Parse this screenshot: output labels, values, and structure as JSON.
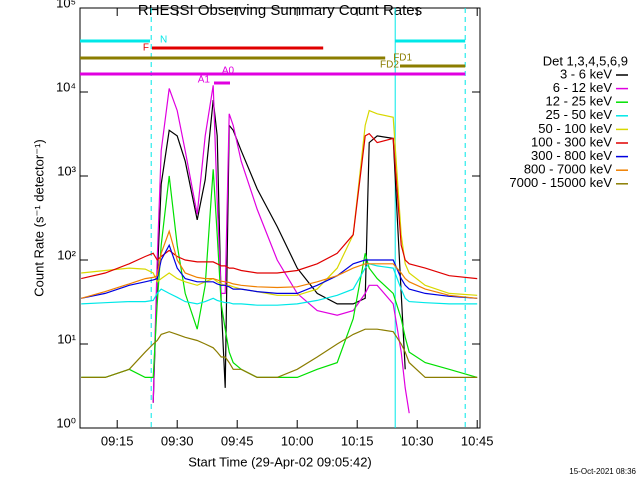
{
  "chart_data": {
    "type": "line",
    "title": "RHESSI Observing Summary Count Rates",
    "xlabel": "Start Time (29-Apr-02 09:05:42)",
    "ylabel": "Count Rate (s⁻¹ detector⁻¹)",
    "footer": "15-Oct-2021 08:36",
    "legend_title": "Det 1,3,4,5,6,9",
    "log_y": true,
    "xlim": [
      5.7,
      105.7
    ],
    "xticks": [
      {
        "value": 15,
        "label": "09:15"
      },
      {
        "value": 30,
        "label": "09:30"
      },
      {
        "value": 45,
        "label": "09:45"
      },
      {
        "value": 60,
        "label": "10:00"
      },
      {
        "value": 75,
        "label": "10:15"
      },
      {
        "value": 90,
        "label": "10:30"
      },
      {
        "value": 105,
        "label": "10:45"
      }
    ],
    "ylim": [
      1,
      100000
    ],
    "yticks": [
      {
        "value": 1,
        "label": "10⁰"
      },
      {
        "value": 10,
        "label": "10¹"
      },
      {
        "value": 100,
        "label": "10²"
      },
      {
        "value": 1000,
        "label": "10³"
      },
      {
        "value": 10000,
        "label": "10⁴"
      },
      {
        "value": 100000,
        "label": "10⁵"
      }
    ],
    "x": [
      6,
      12,
      18,
      22,
      24,
      25,
      26,
      28,
      30,
      32,
      35,
      37,
      39,
      40,
      41,
      42,
      43,
      44,
      46,
      50,
      55,
      60,
      65,
      70,
      74,
      77,
      78,
      80,
      84,
      86,
      87,
      88,
      92,
      98,
      105
    ],
    "series": [
      {
        "name": "3 - 6 keV",
        "color": "#000000",
        "values": [
          null,
          null,
          null,
          null,
          2,
          60,
          800,
          3500,
          3000,
          1500,
          300,
          900,
          8000,
          3000,
          30,
          3,
          4000,
          3500,
          2000,
          700,
          250,
          80,
          40,
          30,
          30,
          35,
          2500,
          3000,
          2800,
          40,
          5,
          null,
          null,
          null,
          null
        ]
      },
      {
        "name": "6 - 12 keV",
        "color": "#e000e0",
        "values": [
          null,
          null,
          null,
          null,
          2,
          100,
          2000,
          11000,
          6000,
          2000,
          350,
          3000,
          12000,
          500,
          40,
          40,
          5500,
          4000,
          1500,
          400,
          100,
          40,
          25,
          22,
          25,
          40,
          50,
          50,
          30,
          8,
          3,
          1.5,
          null,
          null,
          null
        ]
      },
      {
        "name": "12 - 25 keV",
        "color": "#00e000",
        "values": [
          4,
          4,
          5,
          4,
          4,
          30,
          150,
          1000,
          150,
          40,
          15,
          50,
          1200,
          200,
          30,
          15,
          8,
          6,
          5,
          4,
          4,
          4,
          5,
          6,
          20,
          120,
          80,
          60,
          40,
          20,
          12,
          8,
          6,
          5,
          4
        ]
      },
      {
        "name": "25 - 50 keV",
        "color": "#00e8e8",
        "values": [
          30,
          31,
          32,
          32,
          33,
          40,
          45,
          40,
          36,
          32,
          30,
          32,
          35,
          33,
          32,
          31,
          31,
          30,
          30,
          29,
          29,
          30,
          33,
          38,
          45,
          80,
          90,
          85,
          80,
          45,
          35,
          32,
          31,
          30,
          30
        ]
      },
      {
        "name": "50 - 100 keV",
        "color": "#d8d800",
        "values": [
          70,
          75,
          80,
          78,
          70,
          55,
          60,
          70,
          60,
          55,
          50,
          55,
          60,
          55,
          52,
          50,
          50,
          48,
          45,
          42,
          38,
          38,
          45,
          80,
          200,
          4000,
          6000,
          5500,
          5000,
          200,
          90,
          70,
          50,
          40,
          38
        ]
      },
      {
        "name": "100 - 300 keV",
        "color": "#e00000",
        "values": [
          60,
          70,
          90,
          110,
          120,
          100,
          110,
          130,
          110,
          100,
          95,
          95,
          95,
          90,
          85,
          85,
          80,
          80,
          75,
          70,
          70,
          75,
          90,
          120,
          200,
          3000,
          3200,
          2500,
          2800,
          150,
          100,
          90,
          80,
          65,
          60
        ]
      },
      {
        "name": "300 - 800 keV",
        "color": "#0000e0",
        "values": [
          35,
          40,
          50,
          55,
          58,
          60,
          100,
          150,
          80,
          60,
          55,
          55,
          55,
          52,
          50,
          50,
          48,
          45,
          45,
          42,
          40,
          40,
          50,
          65,
          90,
          100,
          100,
          100,
          100,
          60,
          50,
          45,
          40,
          37,
          35
        ]
      },
      {
        "name": "800 - 7000 keV",
        "color": "#f08000",
        "values": [
          35,
          42,
          52,
          60,
          62,
          65,
          120,
          220,
          100,
          70,
          62,
          60,
          60,
          58,
          56,
          55,
          54,
          52,
          50,
          48,
          47,
          48,
          55,
          65,
          80,
          90,
          90,
          90,
          90,
          70,
          60,
          55,
          45,
          38,
          35
        ]
      },
      {
        "name": "7000 - 15000 keV",
        "color": "#8b7d00",
        "values": [
          4,
          4,
          5,
          8,
          10,
          11,
          13,
          14,
          13,
          12,
          11,
          10,
          9,
          8,
          7,
          7,
          6,
          5,
          5,
          4,
          4,
          5,
          7,
          10,
          13,
          15,
          15,
          15,
          14,
          10,
          8,
          6,
          4,
          4,
          4
        ]
      }
    ],
    "intervals": [
      {
        "labels": [
          "N"
        ],
        "color": "#00e8e8",
        "segments": [
          [
            5.7,
            23.2
          ],
          [
            84.5,
            102
          ]
        ]
      },
      {
        "labels": [
          "F"
        ],
        "color": "#e00000",
        "segments": [
          [
            23.7,
            66.5
          ]
        ]
      },
      {
        "labels": [
          "FD1"
        ],
        "color": "#8b7d00",
        "segments": [
          [
            5.7,
            82
          ]
        ]
      },
      {
        "labels": [
          "FD2"
        ],
        "color": "#8b7d00",
        "segments": [
          [
            85.7,
            102
          ]
        ]
      },
      {
        "labels": [],
        "color": "#e000e0",
        "segments": [
          [
            5.7,
            102
          ]
        ]
      },
      {
        "labels": [
          "A1",
          "A0"
        ],
        "color": "#e000e0",
        "segments": [
          [
            39.2,
            43.2
          ]
        ]
      }
    ],
    "vlines": [
      {
        "x": 23.5,
        "color": "#00e8e8",
        "style": "dashed"
      },
      {
        "x": 84.5,
        "color": "#00e8e8",
        "style": "solid"
      },
      {
        "x": 102,
        "color": "#00e8e8",
        "style": "dashed"
      }
    ]
  }
}
